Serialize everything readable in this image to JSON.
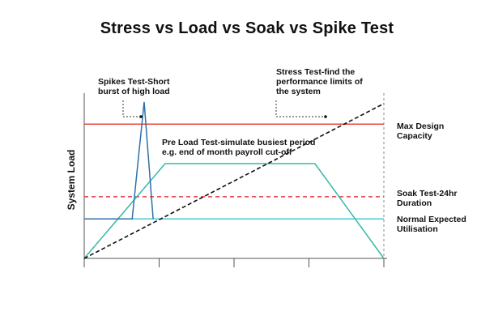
{
  "title": "Stress vs Load vs Soak vs Spike Test",
  "colors": {
    "max_design": "#e8473b",
    "soak": "#e23a4a",
    "normal": "#45c9d6",
    "load": "#37b8a8",
    "stress": "#111111",
    "spike": "#2f6fa8",
    "axis": "#555555"
  },
  "chart_data": {
    "type": "line",
    "ylabel": "System Load",
    "annotations": {
      "spike": [
        "Spikes Test-Short",
        "burst of high load"
      ],
      "stress": [
        "Stress Test-find the",
        "performance limits of",
        "the system"
      ],
      "load": [
        "Pre Load Test-simulate busiest period",
        "e.g. end of month payroll cut-off"
      ],
      "max_design": [
        "Max Design",
        "Capacity"
      ],
      "soak": [
        "Soak Test-24hr",
        "Duration"
      ],
      "normal": [
        "Normal Expected",
        "Utilisation"
      ]
    },
    "levels": {
      "normal": 0.25,
      "soak": 0.39,
      "load_plateau": 0.6,
      "max_design": 0.85,
      "spike_peak": 0.99
    },
    "series": [
      {
        "key": "normal",
        "style": "solid",
        "x": [
          0,
          100
        ],
        "y": [
          0.25,
          0.25
        ]
      },
      {
        "key": "soak",
        "style": "dashed",
        "x": [
          0,
          100
        ],
        "y": [
          0.39,
          0.39
        ]
      },
      {
        "key": "max_design",
        "style": "solid",
        "x": [
          0,
          100
        ],
        "y": [
          0.85,
          0.85
        ]
      },
      {
        "key": "load",
        "style": "solid",
        "x": [
          0,
          27,
          77,
          100
        ],
        "y": [
          0,
          0.6,
          0.6,
          0
        ]
      },
      {
        "key": "stress",
        "style": "dashed",
        "x": [
          0,
          100
        ],
        "y": [
          0,
          0.98
        ]
      },
      {
        "key": "spike",
        "style": "solid",
        "x": [
          0,
          16,
          20,
          23
        ],
        "y": [
          0.25,
          0.25,
          0.99,
          0.25
        ]
      }
    ]
  }
}
